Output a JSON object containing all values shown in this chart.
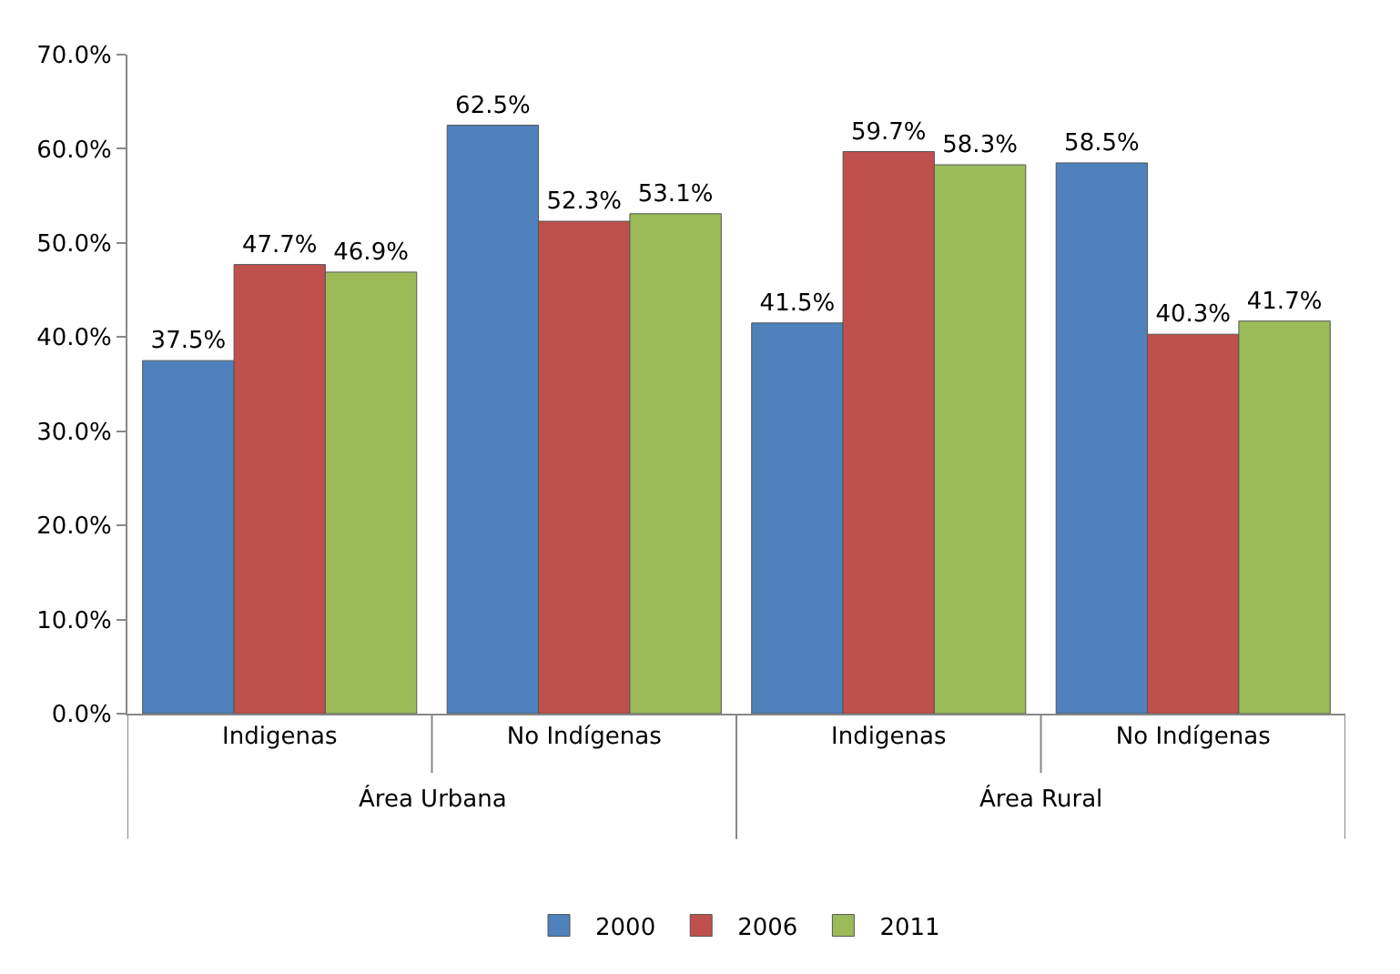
{
  "chart_data": {
    "type": "bar",
    "categories": [
      "Indigenas",
      "No Indígenas",
      "Indigenas",
      "No Indígenas"
    ],
    "series": [
      {
        "name": "2000",
        "color": "#4f81bd",
        "values": [
          37.5,
          62.5,
          41.5,
          58.5
        ],
        "value_labels": [
          "37.5%",
          "62.5%",
          "41.5%",
          "58.5%"
        ]
      },
      {
        "name": "2006",
        "color": "#c0504d",
        "values": [
          47.7,
          52.3,
          59.7,
          40.3
        ],
        "value_labels": [
          "47.7%",
          "52.3%",
          "59.7%",
          "40.3%"
        ]
      },
      {
        "name": "2011",
        "color": "#9bbb59",
        "values": [
          46.9,
          53.1,
          58.3,
          41.7
        ],
        "value_labels": [
          "46.9%",
          "53.1%",
          "58.3%",
          "41.7%"
        ]
      }
    ],
    "annotations": [
      "Área Urbana",
      "Área Rural"
    ],
    "ylim": [
      0,
      70
    ],
    "yticks": [
      {
        "value": 0,
        "label": "0.0%"
      },
      {
        "value": 10,
        "label": "10.0%"
      },
      {
        "value": 20,
        "label": "20.0%"
      },
      {
        "value": 30,
        "label": "30.0%"
      },
      {
        "value": 40,
        "label": "40.0%"
      },
      {
        "value": 50,
        "label": "50.0%"
      },
      {
        "value": 60,
        "label": "60.0%"
      },
      {
        "value": 70,
        "label": "70.0%"
      }
    ],
    "legend": "bottom"
  }
}
